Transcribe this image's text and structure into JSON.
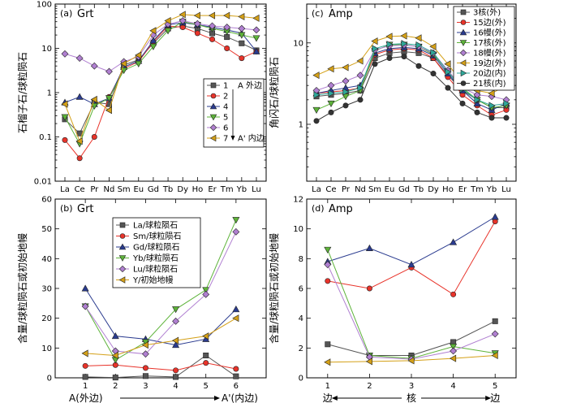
{
  "chart_data": [
    {
      "id": "a",
      "type": "line",
      "panel_label": "(a)",
      "title": "Grt",
      "ylabel": "石榴子石/球粒陨石",
      "yscale": "log",
      "ylim": [
        0.01,
        100
      ],
      "yticks": [
        "0.01",
        "0.1",
        "1",
        "10",
        "100"
      ],
      "categories": [
        "La",
        "Ce",
        "Pr",
        "Nd",
        "Sm",
        "Eu",
        "Gd",
        "Tb",
        "Dy",
        "Ho",
        "Er",
        "Tm",
        "Yb",
        "Lu"
      ],
      "legend_position": "right",
      "legend_arrow": true,
      "series": [
        {
          "name": "1 A 外边",
          "label": "1",
          "suffix": "A 外边",
          "color": "#555555",
          "marker": "square",
          "values": [
            0.25,
            0.12,
            0.6,
            0.55,
            4.2,
            5.5,
            13,
            28,
            32,
            28,
            22,
            18,
            13,
            9
          ]
        },
        {
          "name": "2",
          "label": "2",
          "suffix": "",
          "color": "#e8332a",
          "marker": "circle",
          "values": [
            0.085,
            0.033,
            0.1,
            0.8,
            3.5,
            5,
            14,
            32,
            30,
            22,
            16,
            10,
            6,
            8.5
          ]
        },
        {
          "name": "4",
          "label": "4",
          "suffix": "",
          "color": "#2a3b8f",
          "marker": "triangle-up",
          "values": [
            0.6,
            0.8,
            0.55,
            0.75,
            3.8,
            5.2,
            15,
            34,
            38,
            34,
            30,
            26,
            22,
            8.5
          ]
        },
        {
          "name": "5",
          "label": "5",
          "suffix": "",
          "color": "#5db339",
          "marker": "triangle-down",
          "values": [
            0.28,
            0.07,
            0.5,
            0.75,
            3.2,
            4.5,
            11,
            25,
            40,
            34,
            28,
            24,
            20,
            17
          ]
        },
        {
          "name": "6",
          "label": "6",
          "suffix": "",
          "color": "#b07fd1",
          "marker": "diamond",
          "values": [
            7.5,
            6,
            4,
            3,
            5,
            6.5,
            20,
            35,
            42,
            36,
            32,
            30,
            28,
            26
          ]
        },
        {
          "name": "7 A' 内边",
          "label": "7",
          "suffix": "A' 内边",
          "color": "#d4a017",
          "marker": "triangle-left",
          "values": [
            0.55,
            0.08,
            0.7,
            0.4,
            4.5,
            7,
            25,
            42,
            58,
            55,
            55,
            55,
            52,
            48
          ]
        }
      ]
    },
    {
      "id": "c",
      "type": "line",
      "panel_label": "(c)",
      "title": "Amp",
      "ylabel": "角闪石/球粒陨石",
      "yscale": "log",
      "ylim": [
        0.2,
        30
      ],
      "yticks": [
        "1",
        "10"
      ],
      "categories": [
        "La",
        "Ce",
        "Pr",
        "Nd",
        "Sm",
        "Eu",
        "Gd",
        "Tb",
        "Dy",
        "Ho",
        "Er",
        "Tm",
        "Yb",
        "Lu"
      ],
      "legend_position": "right",
      "series": [
        {
          "name": "3核(外)",
          "color": "#555555",
          "marker": "square",
          "values": [
            2.2,
            2.3,
            2.4,
            2.6,
            6.5,
            7.5,
            7.8,
            7.5,
            6.5,
            4,
            2.6,
            2,
            1.6,
            1.6
          ]
        },
        {
          "name": "15边(外)",
          "color": "#e8332a",
          "marker": "circle",
          "values": [
            2.4,
            2.5,
            2.6,
            2.8,
            7.2,
            8.2,
            8.5,
            8.2,
            6.5,
            3.8,
            2.3,
            1.7,
            1.3,
            1.5
          ]
        },
        {
          "name": "16幔(外)",
          "color": "#2a3b8f",
          "marker": "triangle-up",
          "values": [
            2.4,
            2.6,
            2.8,
            3,
            7.5,
            8.5,
            8.8,
            8.5,
            7,
            4.2,
            2.6,
            1.8,
            1.5,
            1.8
          ]
        },
        {
          "name": "17核(外)",
          "color": "#5db339",
          "marker": "triangle-down",
          "values": [
            1.5,
            1.8,
            2.2,
            2.6,
            8,
            9.5,
            9.5,
            9,
            7.2,
            4.5,
            2.8,
            2,
            1.6,
            1.7
          ]
        },
        {
          "name": "18幔(外)",
          "color": "#b07fd1",
          "marker": "diamond",
          "values": [
            2.6,
            3,
            3.4,
            4,
            8.2,
            9.2,
            9.4,
            9,
            7.5,
            4.6,
            2.8,
            2.3,
            2.2,
            2
          ]
        },
        {
          "name": "19边(外)",
          "color": "#d4a017",
          "marker": "triangle-left",
          "values": [
            4,
            4.8,
            5,
            6,
            10.5,
            12,
            12.2,
            11.5,
            9,
            5.5,
            3.2,
            2.6,
            2.4,
            3
          ]
        },
        {
          "name": "20边(内)",
          "color": "#2fa89a",
          "marker": "triangle-right",
          "values": [
            2.3,
            2.4,
            2.5,
            2.8,
            8.5,
            9.6,
            9.8,
            9.4,
            7.6,
            4.4,
            2.7,
            2,
            1.7,
            1.8
          ]
        },
        {
          "name": "21核(内)",
          "color": "#333333",
          "marker": "circle-dark",
          "values": [
            1.1,
            1.4,
            1.7,
            2,
            5.5,
            6.5,
            6.8,
            5.2,
            4.2,
            2.8,
            1.8,
            1.4,
            1.2,
            1.2
          ]
        }
      ]
    },
    {
      "id": "b",
      "type": "line",
      "panel_label": "(b)",
      "title": "Grt",
      "ylabel": "含量/球粒陨石或初始地幔",
      "ylim": [
        0,
        60
      ],
      "yticks": [
        "0",
        "10",
        "20",
        "30",
        "40",
        "50",
        "60"
      ],
      "categories": [
        "1",
        "2",
        "3",
        "4",
        "5",
        "6"
      ],
      "xlabel": "A(外边)",
      "xlabel_end": "A'(内边)",
      "legend_position": "top-center",
      "series": [
        {
          "name": "La/球粒陨石",
          "color": "#555555",
          "marker": "square",
          "values": [
            0.3,
            0.1,
            0.6,
            0.3,
            7.5,
            0.5
          ]
        },
        {
          "name": "Sm/球粒陨石",
          "color": "#e8332a",
          "marker": "circle",
          "values": [
            4,
            4.3,
            3.3,
            2.5,
            5,
            3
          ]
        },
        {
          "name": "Gd/球粒陨石",
          "color": "#2a3b8f",
          "marker": "triangle-up",
          "values": [
            30,
            14,
            13,
            11,
            13,
            23
          ]
        },
        {
          "name": "Yb/球粒陨石",
          "color": "#5db339",
          "marker": "triangle-down",
          "values": [
            24,
            6,
            12,
            23,
            29.5,
            53
          ]
        },
        {
          "name": "Lu/球粒陨石",
          "color": "#b07fd1",
          "marker": "diamond",
          "values": [
            24,
            9,
            8,
            19,
            28,
            49
          ]
        },
        {
          "name": "Y/初始地幔",
          "color": "#d4a017",
          "marker": "triangle-left",
          "values": [
            8.2,
            7.5,
            11,
            12.5,
            14,
            20
          ]
        }
      ]
    },
    {
      "id": "d",
      "type": "line",
      "panel_label": "(d)",
      "title": "Amp",
      "ylabel": "含量/球粒陨石或初始地幔",
      "ylim": [
        0,
        12
      ],
      "yticks": [
        "0",
        "2",
        "4",
        "6",
        "8",
        "10",
        "12"
      ],
      "categories": [
        "1",
        "2",
        "3",
        "4",
        "5"
      ],
      "xlabel": "边",
      "xlabel_mid": "核",
      "xlabel_end": "边",
      "series": [
        {
          "name": "La",
          "color": "#555555",
          "marker": "square",
          "values": [
            2.25,
            1.5,
            1.5,
            2.4,
            3.8
          ]
        },
        {
          "name": "Sm",
          "color": "#e8332a",
          "marker": "circle",
          "values": [
            6.5,
            6,
            7.4,
            5.6,
            10.5
          ]
        },
        {
          "name": "Gd",
          "color": "#2a3b8f",
          "marker": "triangle-up",
          "values": [
            7.8,
            8.7,
            7.6,
            9.1,
            10.8
          ]
        },
        {
          "name": "Yb",
          "color": "#5db339",
          "marker": "triangle-down",
          "values": [
            8.6,
            1.5,
            1.3,
            2.1,
            1.65
          ]
        },
        {
          "name": "Lu",
          "color": "#b07fd1",
          "marker": "diamond",
          "values": [
            7.6,
            1.4,
            1.25,
            1.8,
            2.95
          ]
        },
        {
          "name": "Y",
          "color": "#d4a017",
          "marker": "triangle-left",
          "values": [
            1.05,
            1.1,
            1.15,
            1.3,
            1.5
          ]
        }
      ]
    }
  ]
}
